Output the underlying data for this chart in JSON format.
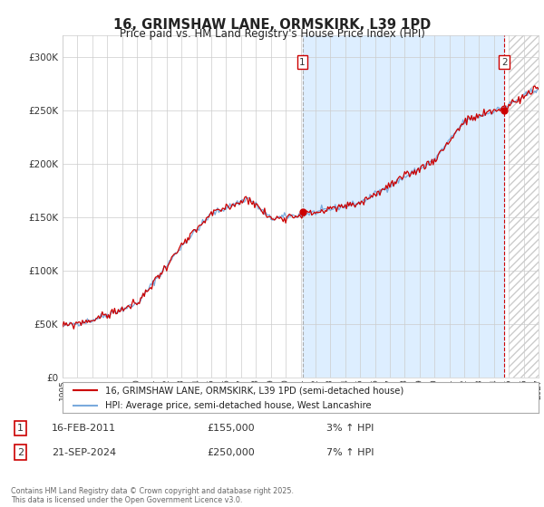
{
  "title": "16, GRIMSHAW LANE, ORMSKIRK, L39 1PD",
  "subtitle": "Price paid vs. HM Land Registry's House Price Index (HPI)",
  "legend_label_red": "16, GRIMSHAW LANE, ORMSKIRK, L39 1PD (semi-detached house)",
  "legend_label_blue": "HPI: Average price, semi-detached house, West Lancashire",
  "annotation1_date": "16-FEB-2011",
  "annotation1_price": 155000,
  "annotation1_hpi": "3% ↑ HPI",
  "annotation2_date": "21-SEP-2024",
  "annotation2_price": 250000,
  "annotation2_hpi": "7% ↑ HPI",
  "footer": "Contains HM Land Registry data © Crown copyright and database right 2025.\nThis data is licensed under the Open Government Licence v3.0.",
  "ylim": [
    0,
    320000
  ],
  "xlim": [
    1995,
    2027
  ],
  "background_color": "#ffffff",
  "grid_color": "#cccccc",
  "red_color": "#cc0000",
  "blue_color": "#7aaadd",
  "highlight_color": "#ddeeff",
  "hatch_color": "#dddddd",
  "ann_border_color": "#cc0000"
}
